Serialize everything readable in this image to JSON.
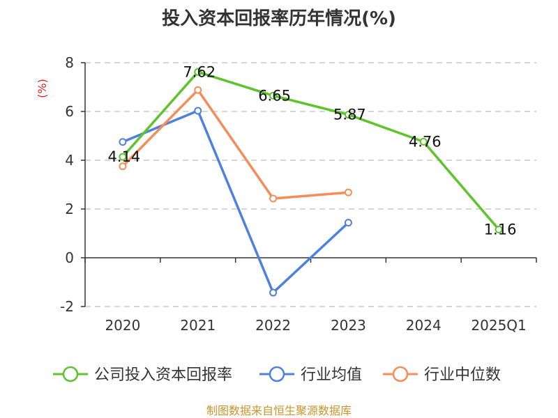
{
  "chart_data": {
    "type": "line",
    "title": "投入资本回报率历年情况(%)",
    "ylabel": "(%)",
    "categories": [
      "2020",
      "2021",
      "2022",
      "2023",
      "2024",
      "2025Q1"
    ],
    "ylim": [
      -2,
      8
    ],
    "yticks": [
      "-2",
      "0",
      "2",
      "4",
      "6",
      "8"
    ],
    "ytick_values": [
      -2,
      0,
      2,
      4,
      6,
      8
    ],
    "grid": true,
    "legend_position": "bottom",
    "series": [
      {
        "name": "公司投入资本回报率",
        "color": "#5ec42d",
        "values": [
          4.14,
          7.62,
          6.65,
          5.87,
          4.76,
          1.16
        ],
        "labels": [
          "4.14",
          "7.62",
          "6.65",
          "5.87",
          "4.76",
          "1.16"
        ]
      },
      {
        "name": "行业均值",
        "color": "#4f80dd",
        "values": [
          4.75,
          6.03,
          -1.43,
          1.44,
          null,
          null
        ]
      },
      {
        "name": "行业中位数",
        "color": "#f58d5a",
        "values": [
          3.75,
          6.88,
          2.43,
          2.68,
          null,
          null
        ]
      }
    ]
  },
  "source": "制图数据来自恒生聚源数据库"
}
